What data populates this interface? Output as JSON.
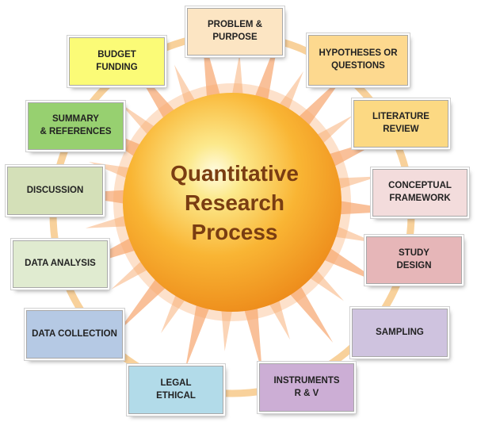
{
  "center": {
    "line1": "Quantitative",
    "line2": "Research",
    "line3": "Process"
  },
  "steps": [
    {
      "label": "PROBLEM &\nPURPOSE",
      "fill": "#fce5c3"
    },
    {
      "label": "HYPOTHESES OR\nQUESTIONS",
      "fill": "#fdd98f"
    },
    {
      "label": "LITERATURE\nREVIEW",
      "fill": "#fcd983"
    },
    {
      "label": "CONCEPTUAL\nFRAMEWORK",
      "fill": "#f3dcdc"
    },
    {
      "label": "STUDY\nDESIGN",
      "fill": "#e6b6b8"
    },
    {
      "label": "SAMPLING",
      "fill": "#cfc3df"
    },
    {
      "label": "INSTRUMENTS\nR & V",
      "fill": "#ccaed5"
    },
    {
      "label": "LEGAL\nETHICAL",
      "fill": "#b2dbe9"
    },
    {
      "label": "DATA COLLECTION",
      "fill": "#b5c9e4"
    },
    {
      "label": "DATA ANALYSIS",
      "fill": "#e0ebd0"
    },
    {
      "label": "DISCUSSION",
      "fill": "#d4e0b8"
    },
    {
      "label": "SUMMARY\n& REFERENCES",
      "fill": "#97d070"
    },
    {
      "label": "BUDGET\nFUNDING",
      "fill": "#fbfb77"
    }
  ],
  "colors": {
    "ring": "#f7c989",
    "sun_core": "#fce98c",
    "sun_mid": "#f9b534",
    "sun_edge": "#ee8f1c",
    "ray_inner": "#fbbf83",
    "ray_outer": "#fde3cf",
    "title_text": "#7a3d12"
  }
}
